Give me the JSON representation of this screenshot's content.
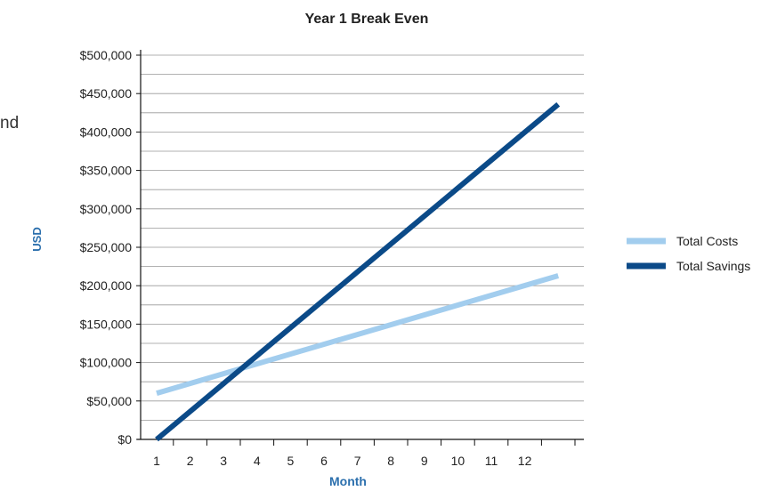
{
  "side_text_fragment": "nd",
  "colors": {
    "total_costs": "#a2cdee",
    "total_savings": "#0b4a88",
    "axis_title": "#2b6fad",
    "grid": "#999999",
    "text": "#222222"
  },
  "chart_data": {
    "type": "line",
    "title": "Year 1 Break Even",
    "xlabel": "Month",
    "ylabel": "USD",
    "categories": [
      "1",
      "2",
      "3",
      "4",
      "5",
      "6",
      "7",
      "8",
      "9",
      "10",
      "11",
      "12"
    ],
    "x": [
      1,
      13
    ],
    "ylim": [
      0,
      500000
    ],
    "yticks": [
      0,
      50000,
      100000,
      150000,
      200000,
      250000,
      300000,
      350000,
      400000,
      450000,
      500000
    ],
    "ytick_labels": [
      "$0",
      "$50,000",
      "$100,000",
      "$150,000",
      "$200,000",
      "$250,000",
      "$300,000",
      "$350,000",
      "$400,000",
      "$450,000",
      "$500,000"
    ],
    "grid": true,
    "legend_position": "right",
    "series": [
      {
        "name": "Total Costs",
        "values": [
          60000,
          213000
        ],
        "color": "#a2cdee"
      },
      {
        "name": "Total Savings",
        "values": [
          0,
          436000
        ],
        "color": "#0b4a88"
      }
    ]
  }
}
